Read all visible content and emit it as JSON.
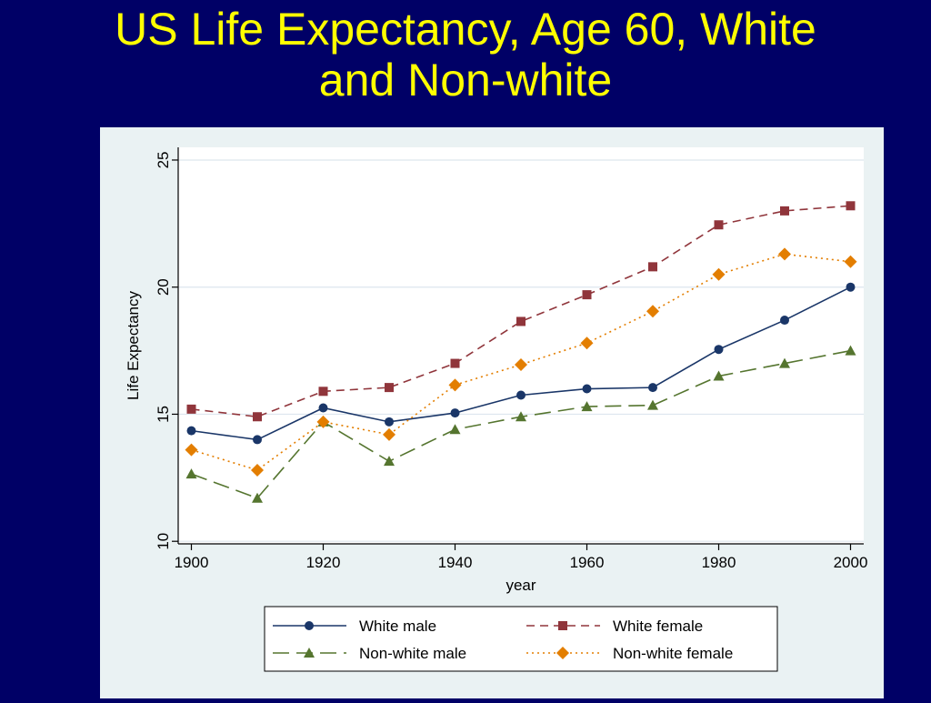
{
  "slide": {
    "title_line1": "US Life Expectancy, Age 60, White",
    "title_line2": "and Non-white"
  },
  "chart_data": {
    "type": "line",
    "title": "US Life Expectancy, Age 60, White and Non-white",
    "xlabel": "year",
    "ylabel": "Life Expectancy",
    "xlim": [
      1898,
      2002
    ],
    "ylim": [
      9.9,
      25.5
    ],
    "xticks": [
      1900,
      1920,
      1940,
      1960,
      1980,
      2000
    ],
    "yticks": [
      10,
      15,
      20,
      25
    ],
    "grid": "horizontal",
    "legend_position": "bottom",
    "x": [
      1900,
      1910,
      1920,
      1930,
      1940,
      1950,
      1960,
      1970,
      1980,
      1990,
      2000
    ],
    "series": [
      {
        "name": "White male",
        "values": [
          14.35,
          14.0,
          15.25,
          14.7,
          15.05,
          15.75,
          16.0,
          16.05,
          17.55,
          18.7,
          20.0
        ],
        "color": "#1a3668",
        "marker": "circle",
        "dash": "solid"
      },
      {
        "name": "White female",
        "values": [
          15.2,
          14.9,
          15.9,
          16.05,
          17.0,
          18.65,
          19.7,
          20.8,
          22.45,
          23.0,
          23.2
        ],
        "color": "#90353b",
        "marker": "square",
        "dash": "dash"
      },
      {
        "name": "Non-white male",
        "values": [
          12.65,
          11.7,
          14.7,
          13.15,
          14.4,
          14.9,
          15.3,
          15.35,
          16.5,
          17.0,
          17.5
        ],
        "color": "#55752f",
        "marker": "triangle",
        "dash": "longdash"
      },
      {
        "name": "Non-white female",
        "values": [
          13.6,
          12.8,
          14.7,
          14.2,
          16.15,
          16.95,
          17.8,
          19.05,
          20.5,
          21.3,
          21.0
        ],
        "color": "#e37e00",
        "marker": "diamond",
        "dash": "dot"
      }
    ]
  }
}
